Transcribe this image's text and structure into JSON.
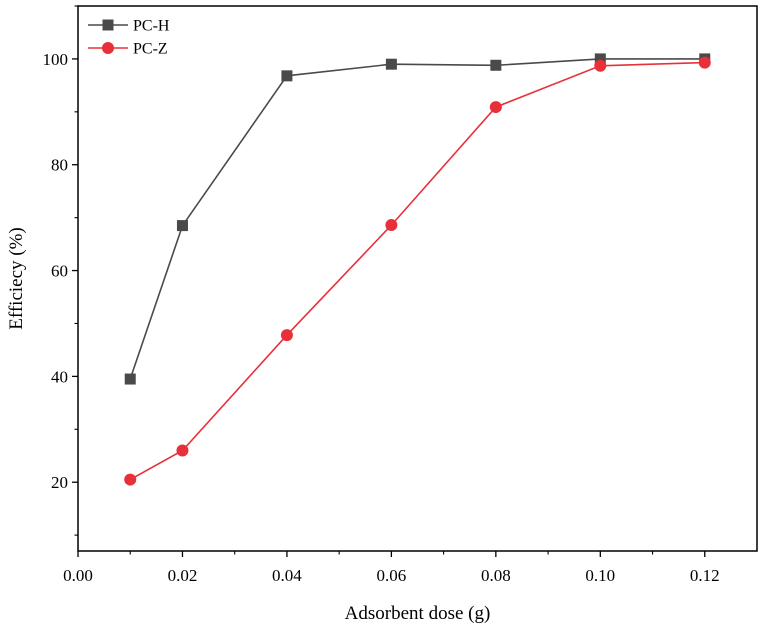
{
  "chart_data": {
    "type": "line",
    "xlabel": "Adsorbent dose (g)",
    "ylabel": "Efficiecy (%)",
    "xlim": [
      0.0,
      0.13
    ],
    "ylim": [
      7,
      110
    ],
    "xticks": [
      "0.00",
      "0.02",
      "0.04",
      "0.06",
      "0.08",
      "0.10",
      "0.12"
    ],
    "yticks": [
      "20",
      "40",
      "60",
      "80",
      "100"
    ],
    "grid": false,
    "legend_position": "top-left",
    "series": [
      {
        "name": "PC-H",
        "color": "#4a4a4a",
        "marker": "square",
        "x": [
          0.01,
          0.02,
          0.04,
          0.06,
          0.08,
          0.1,
          0.12
        ],
        "y": [
          39.5,
          68.5,
          96.8,
          99.0,
          98.8,
          100.0,
          100.0
        ]
      },
      {
        "name": "PC-Z",
        "color": "#e8303a",
        "marker": "circle",
        "x": [
          0.01,
          0.02,
          0.04,
          0.06,
          0.08,
          0.1,
          0.12
        ],
        "y": [
          20.5,
          26.0,
          47.8,
          68.6,
          90.9,
          98.7,
          99.3
        ]
      }
    ]
  }
}
